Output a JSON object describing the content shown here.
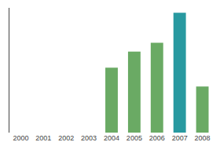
{
  "chart_data": {
    "type": "bar",
    "categories": [
      "2000",
      "2001",
      "2002",
      "2003",
      "2004",
      "2005",
      "2006",
      "2007",
      "2008"
    ],
    "values": [
      0,
      0,
      0,
      0,
      52,
      65,
      72,
      96,
      37
    ],
    "colors": [
      "#6aaa64",
      "#6aaa64",
      "#6aaa64",
      "#6aaa64",
      "#6aaa64",
      "#6aaa64",
      "#6aaa64",
      "#2899a0",
      "#6aaa64"
    ],
    "ylim": [
      0,
      100
    ],
    "grid": false,
    "tick_labels": "x"
  }
}
